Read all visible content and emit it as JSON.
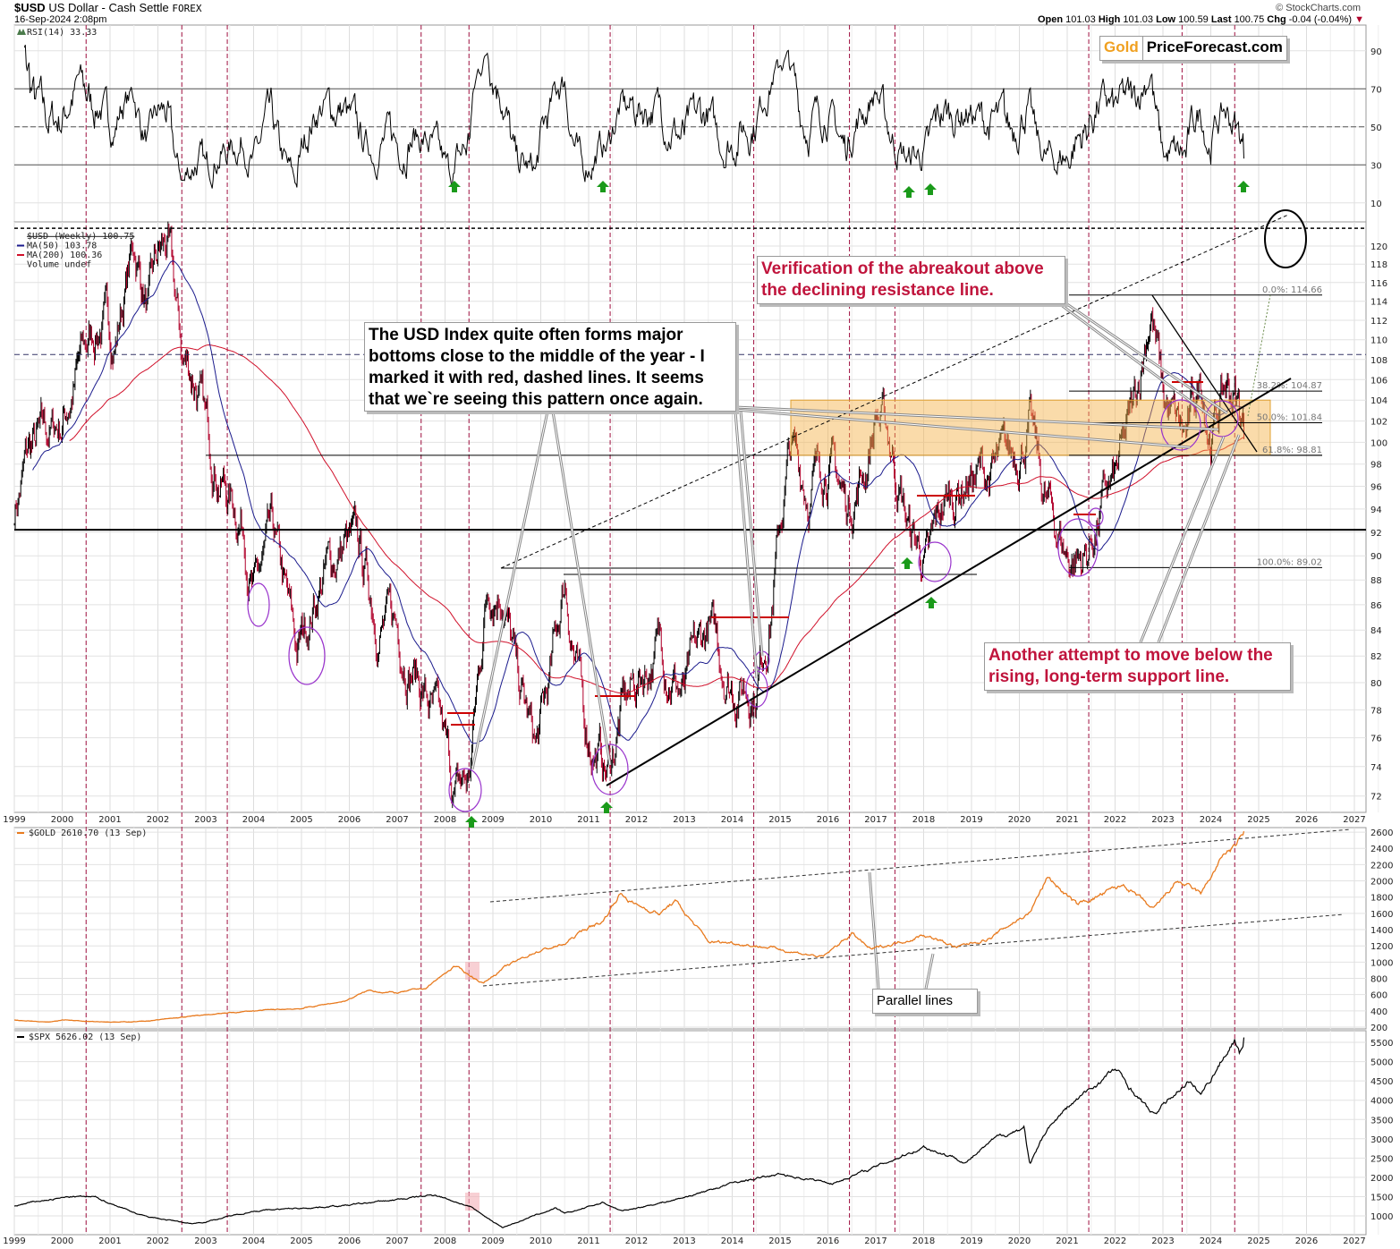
{
  "header": {
    "symbol": "$USD",
    "name": "US Dollar - Cash Settle",
    "exchange": "FOREX",
    "datetime": "16-Sep-2024 2:08pm",
    "source": "© StockCharts.com",
    "open_label": "Open",
    "open": "101.03",
    "high_label": "High",
    "high": "101.03",
    "low_label": "Low",
    "low": "100.59",
    "last_label": "Last",
    "last": "100.75",
    "chg_label": "Chg",
    "chg": "-0.04 (-0.04%)"
  },
  "logo": {
    "part1": "Gold",
    "part2": "PriceForecast.com"
  },
  "colors": {
    "price_up": "#000000",
    "price_down": "#b0002a",
    "ma50": "#1a1a8c",
    "ma200": "#d0102a",
    "gold": "#e87a1e",
    "spx": "#000000",
    "cycle_lines": "#a01040",
    "support_box": "#f5b042",
    "circles": "#9933cc",
    "arrows": "#1a9a1a",
    "annotation_red": "#c0143c"
  },
  "chart_data": [
    {
      "type": "line",
      "panel": "rsi",
      "legend": "RSI(14) 33.33",
      "ylim": [
        0,
        100
      ],
      "yticks": [
        10,
        30,
        50,
        70,
        90
      ],
      "levels": [
        30,
        50,
        70
      ],
      "last_value": 33.33
    },
    {
      "type": "candlestick",
      "panel": "main",
      "legend": [
        "$USD (Weekly) 100.75",
        "MA(50) 103.78",
        "MA(200) 100.36",
        "Volume undef"
      ],
      "scale": "log",
      "ylim": [
        71,
        124
      ],
      "yticks": [
        72,
        74,
        76,
        78,
        80,
        82,
        84,
        86,
        88,
        90,
        92,
        94,
        96,
        98,
        100,
        102,
        104,
        106,
        108,
        110,
        112,
        114,
        116,
        118,
        120
      ],
      "xticks": [
        "1999",
        "2000",
        "2001",
        "2002",
        "2003",
        "2004",
        "2005",
        "2006",
        "2007",
        "2008",
        "2009",
        "2010",
        "2011",
        "2012",
        "2013",
        "2014",
        "2015",
        "2016",
        "2017",
        "2018",
        "2019",
        "2020",
        "2021",
        "2022",
        "2023",
        "2024",
        "2025",
        "2026",
        "2027"
      ],
      "series": [
        {
          "points": [
            [
              1999.0,
              94
            ],
            [
              1999.3,
              99
            ],
            [
              1999.6,
              100
            ],
            [
              2000.0,
              102
            ],
            [
              2000.4,
              108
            ],
            [
              2000.8,
              112
            ],
            [
              2001.1,
              110
            ],
            [
              2001.5,
              120
            ],
            [
              2001.8,
              113
            ],
            [
              2002.0,
              118
            ],
            [
              2002.2,
              120
            ],
            [
              2002.5,
              108
            ],
            [
              2002.8,
              106
            ],
            [
              2003.0,
              101
            ],
            [
              2003.5,
              95
            ],
            [
              2003.8,
              93
            ],
            [
              2004.0,
              87
            ],
            [
              2004.4,
              91
            ],
            [
              2004.9,
              82
            ],
            [
              2005.4,
              88
            ],
            [
              2005.9,
              91
            ],
            [
              2006.2,
              90
            ],
            [
              2006.6,
              85
            ],
            [
              2007.0,
              84
            ],
            [
              2007.5,
              80
            ],
            [
              2007.9,
              76
            ],
            [
              2008.2,
              72
            ],
            [
              2008.5,
              73
            ],
            [
              2008.9,
              88
            ],
            [
              2009.2,
              88
            ],
            [
              2009.5,
              80
            ],
            [
              2009.9,
              75
            ],
            [
              2010.2,
              80
            ],
            [
              2010.5,
              88
            ],
            [
              2010.9,
              77
            ],
            [
              2011.4,
              73.5
            ],
            [
              2011.7,
              78
            ],
            [
              2012.0,
              80
            ],
            [
              2012.5,
              83
            ],
            [
              2013.0,
              79
            ],
            [
              2013.5,
              84
            ],
            [
              2014.0,
              80
            ],
            [
              2014.5,
              80
            ],
            [
              2014.8,
              86
            ],
            [
              2015.2,
              99
            ],
            [
              2015.6,
              96
            ],
            [
              2016.0,
              99
            ],
            [
              2016.4,
              94
            ],
            [
              2016.8,
              98
            ],
            [
              2017.0,
              103
            ],
            [
              2017.3,
              100
            ],
            [
              2017.7,
              92
            ],
            [
              2018.1,
              89
            ],
            [
              2018.4,
              94
            ],
            [
              2018.9,
              97
            ],
            [
              2019.4,
              97
            ],
            [
              2019.8,
              98
            ],
            [
              2020.2,
              102
            ],
            [
              2020.5,
              95
            ],
            [
              2021.0,
              90
            ],
            [
              2021.4,
              90
            ],
            [
              2021.8,
              95
            ],
            [
              2022.0,
              96
            ],
            [
              2022.4,
              103
            ],
            [
              2022.75,
              114
            ],
            [
              2023.0,
              104
            ],
            [
              2023.3,
              101
            ],
            [
              2023.5,
              100
            ],
            [
              2023.8,
              106
            ],
            [
              2024.0,
              101
            ],
            [
              2024.3,
              105
            ],
            [
              2024.5,
              104.5
            ],
            [
              2024.71,
              100.75
            ]
          ]
        }
      ],
      "moving_averages": [
        {
          "name": "MA(50)",
          "last": 103.78
        },
        {
          "name": "MA(200)",
          "last": 100.36
        }
      ],
      "fibonacci": [
        {
          "label": "0.0%: 114.66",
          "value": 114.66
        },
        {
          "label": "38.2%: 104.87",
          "value": 104.87
        },
        {
          "label": "50.0%: 101.84",
          "value": 101.84
        },
        {
          "label": "61.8%: 98.81",
          "value": 98.81
        },
        {
          "label": "100.0%: 89.02",
          "value": 89.02
        }
      ],
      "horizontal_lines": [
        92.2,
        108.5,
        122
      ]
    },
    {
      "type": "line",
      "panel": "gold",
      "legend": "$GOLD 2610.70 (13 Sep)",
      "ylim": [
        150,
        2650
      ],
      "yticks": [
        200,
        400,
        600,
        800,
        1000,
        1200,
        1400,
        1600,
        1800,
        2000,
        2200,
        2400,
        2600
      ],
      "series": [
        {
          "points": [
            [
              1999.0,
              290
            ],
            [
              1999.7,
              260
            ],
            [
              2000.0,
              290
            ],
            [
              2001.2,
              260
            ],
            [
              2001.9,
              280
            ],
            [
              2002.5,
              320
            ],
            [
              2003.0,
              350
            ],
            [
              2004.0,
              400
            ],
            [
              2005.0,
              430
            ],
            [
              2005.9,
              520
            ],
            [
              2006.4,
              650
            ],
            [
              2007.0,
              620
            ],
            [
              2007.6,
              680
            ],
            [
              2008.2,
              950
            ],
            [
              2008.8,
              740
            ],
            [
              2009.2,
              920
            ],
            [
              2009.9,
              1130
            ],
            [
              2010.5,
              1220
            ],
            [
              2010.9,
              1400
            ],
            [
              2011.3,
              1500
            ],
            [
              2011.65,
              1850
            ],
            [
              2012.0,
              1700
            ],
            [
              2012.5,
              1600
            ],
            [
              2012.8,
              1750
            ],
            [
              2013.3,
              1400
            ],
            [
              2013.5,
              1250
            ],
            [
              2014.0,
              1240
            ],
            [
              2014.8,
              1180
            ],
            [
              2015.9,
              1060
            ],
            [
              2016.5,
              1350
            ],
            [
              2016.9,
              1150
            ],
            [
              2017.8,
              1300
            ],
            [
              2018.0,
              1340
            ],
            [
              2018.7,
              1180
            ],
            [
              2019.4,
              1300
            ],
            [
              2019.9,
              1500
            ],
            [
              2020.2,
              1600
            ],
            [
              2020.6,
              2050
            ],
            [
              2021.2,
              1700
            ],
            [
              2021.6,
              1800
            ],
            [
              2022.2,
              1950
            ],
            [
              2022.8,
              1630
            ],
            [
              2023.3,
              2000
            ],
            [
              2023.8,
              1830
            ],
            [
              2024.0,
              2050
            ],
            [
              2024.3,
              2350
            ],
            [
              2024.5,
              2400
            ],
            [
              2024.71,
              2610.7
            ]
          ]
        }
      ],
      "annotation": "Parallel lines"
    },
    {
      "type": "line",
      "panel": "spx",
      "legend": "$SPX 5626.02 (13 Sep)",
      "ylim": [
        800,
        5800
      ],
      "yticks": [
        1000,
        1500,
        2000,
        2500,
        3000,
        3500,
        4000,
        4500,
        5000,
        5500
      ],
      "series": [
        {
          "points": [
            [
              1999.0,
              1250
            ],
            [
              1999.5,
              1380
            ],
            [
              2000.2,
              1500
            ],
            [
              2000.7,
              1480
            ],
            [
              2001.7,
              1000
            ],
            [
              2002.7,
              800
            ],
            [
              2003.0,
              850
            ],
            [
              2004.0,
              1130
            ],
            [
              2005.0,
              1200
            ],
            [
              2006.0,
              1280
            ],
            [
              2007.0,
              1420
            ],
            [
              2007.8,
              1550
            ],
            [
              2008.5,
              1250
            ],
            [
              2009.2,
              700
            ],
            [
              2010.3,
              1200
            ],
            [
              2010.5,
              1050
            ],
            [
              2011.3,
              1350
            ],
            [
              2011.7,
              1120
            ],
            [
              2013.0,
              1480
            ],
            [
              2014.0,
              1850
            ],
            [
              2015.0,
              2080
            ],
            [
              2016.1,
              1850
            ],
            [
              2017.0,
              2270
            ],
            [
              2018.0,
              2800
            ],
            [
              2018.9,
              2400
            ],
            [
              2019.5,
              3000
            ],
            [
              2020.1,
              3300
            ],
            [
              2020.22,
              2300
            ],
            [
              2020.6,
              3300
            ],
            [
              2021.0,
              3800
            ],
            [
              2022.0,
              4800
            ],
            [
              2022.8,
              3600
            ],
            [
              2023.5,
              4500
            ],
            [
              2023.8,
              4150
            ],
            [
              2024.3,
              5200
            ],
            [
              2024.5,
              5600
            ],
            [
              2024.6,
              5200
            ],
            [
              2024.71,
              5626
            ]
          ]
        }
      ]
    }
  ],
  "cycle_lines_years": [
    2000.5,
    2002.5,
    2003.45,
    2007.5,
    2008.5,
    2011.45,
    2014.45,
    2016.45,
    2017.4,
    2021.45,
    2023.4,
    2024.5
  ],
  "annotations": {
    "verification": [
      "Verification of the abreakout above",
      "the declining resistance line."
    ],
    "pattern": [
      "The USD Index quite often forms major",
      "bottoms close to the middle of the year - I",
      "marked it with red, dashed lines. It seems",
      "that we`re seeing this pattern once again."
    ],
    "attempt": [
      "Another attempt to move below the",
      "rising, long-term support line."
    ],
    "parallel": "Parallel lines"
  }
}
